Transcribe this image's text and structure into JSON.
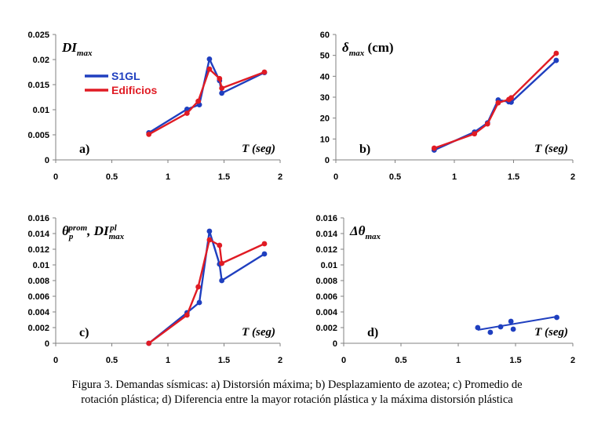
{
  "colors": {
    "s1gl": "#1f3fbf",
    "edificios": "#e01b24",
    "axis": "#808080"
  },
  "legend": {
    "s1gl": "S1GL",
    "edificios": "Edificios"
  },
  "caption": {
    "line1": "Figura 3. Demandas sísmicas: a) Distorsión máxima; b) Desplazamiento de azotea; c) Promedio de",
    "line2": "rotación plástica; d) Diferencia entre la mayor rotación plástica y la máxima distorsión plástica"
  },
  "chart_data": [
    {
      "id": "a",
      "type": "line",
      "panel_label": "a)",
      "title": "DImax",
      "title_parts": {
        "main": "DI",
        "sub": "max"
      },
      "xlabel": "T (seg)",
      "xlim": [
        0,
        2
      ],
      "ylim": [
        0,
        0.025
      ],
      "xticks": [
        "0",
        "0.5",
        "1",
        "1.5",
        "2"
      ],
      "xtick_values": [
        0,
        0.5,
        1,
        1.5,
        2
      ],
      "yticks": [
        "0",
        "0.005",
        "0.01",
        "0.015",
        "0.02",
        "0.025"
      ],
      "ytick_values": [
        0,
        0.005,
        0.01,
        0.015,
        0.02,
        0.025
      ],
      "series": [
        {
          "name": "S1GL",
          "x": [
            0.83,
            1.17,
            1.28,
            1.37,
            1.46,
            1.48,
            1.86
          ],
          "y": [
            0.0054,
            0.0101,
            0.011,
            0.0201,
            0.0158,
            0.0133,
            0.0174
          ]
        },
        {
          "name": "Edificios",
          "x": [
            0.83,
            1.17,
            1.27,
            1.37,
            1.46,
            1.48,
            1.86
          ],
          "y": [
            0.0051,
            0.0093,
            0.0117,
            0.0181,
            0.0162,
            0.0143,
            0.0175
          ]
        }
      ]
    },
    {
      "id": "b",
      "type": "line",
      "panel_label": "b)",
      "title": "δmax (cm)",
      "title_parts": {
        "main": "δ",
        "sub": "max",
        "unit": " (cm)"
      },
      "xlabel": "T (seg)",
      "xlim": [
        0,
        2
      ],
      "ylim": [
        0,
        60
      ],
      "xticks": [
        "0",
        "0.5",
        "1",
        "1.5",
        "2"
      ],
      "xtick_values": [
        0,
        0.5,
        1,
        1.5,
        2
      ],
      "yticks": [
        "0",
        "10",
        "20",
        "30",
        "40",
        "50",
        "60"
      ],
      "ytick_values": [
        0,
        10,
        20,
        30,
        40,
        50,
        60
      ],
      "series": [
        {
          "name": "S1GL",
          "x": [
            0.83,
            1.17,
            1.28,
            1.37,
            1.46,
            1.48,
            1.86
          ],
          "y": [
            4.7,
            13.3,
            17.7,
            28.7,
            27.8,
            27.6,
            47.6
          ]
        },
        {
          "name": "Edificios",
          "x": [
            0.83,
            1.17,
            1.28,
            1.37,
            1.46,
            1.48,
            1.86
          ],
          "y": [
            5.6,
            12.5,
            17.2,
            27.3,
            28.9,
            29.7,
            51.0
          ]
        }
      ]
    },
    {
      "id": "c",
      "type": "line",
      "panel_label": "c)",
      "title": "θp prom, DImax pl",
      "title_parts": {
        "main1": "θ",
        "sub1": "p",
        "sup1": "prom",
        "sep": ", ",
        "main2": "DI",
        "sub2": "max",
        "sup2": "pl"
      },
      "xlabel": "T (seg)",
      "xlim": [
        0,
        2
      ],
      "ylim": [
        0,
        0.016
      ],
      "xticks": [
        "0",
        "0.5",
        "1",
        "1.5",
        "2"
      ],
      "xtick_values": [
        0,
        0.5,
        1,
        1.5,
        2
      ],
      "yticks": [
        "0",
        "0.002",
        "0.004",
        "0.006",
        "0.008",
        "0.01",
        "0.012",
        "0.014",
        "0.016"
      ],
      "ytick_values": [
        0,
        0.002,
        0.004,
        0.006,
        0.008,
        0.01,
        0.012,
        0.014,
        0.016
      ],
      "series": [
        {
          "name": "S1GL",
          "x": [
            0.83,
            1.17,
            1.28,
            1.37,
            1.46,
            1.48,
            1.86
          ],
          "y": [
            0.0,
            0.0039,
            0.0052,
            0.0143,
            0.0101,
            0.008,
            0.0114
          ]
        },
        {
          "name": "Edificios",
          "x": [
            0.83,
            1.17,
            1.27,
            1.37,
            1.46,
            1.48,
            1.86
          ],
          "y": [
            0.0,
            0.0036,
            0.0072,
            0.0132,
            0.0125,
            0.0102,
            0.0127
          ]
        }
      ]
    },
    {
      "id": "d",
      "type": "scatter",
      "panel_label": "d)",
      "title": "Δθmax",
      "title_parts": {
        "main": "Δθ",
        "sub": "max"
      },
      "xlabel": "T (seg)",
      "xlim": [
        0,
        2
      ],
      "ylim": [
        0,
        0.016
      ],
      "xticks": [
        "0",
        "0.5",
        "1",
        "1.5",
        "2"
      ],
      "xtick_values": [
        0,
        0.5,
        1,
        1.5,
        2
      ],
      "yticks": [
        "0",
        "0.002",
        "0.004",
        "0.006",
        "0.008",
        "0.01",
        "0.012",
        "0.014",
        "0.016"
      ],
      "ytick_values": [
        0,
        0.002,
        0.004,
        0.006,
        0.008,
        0.01,
        0.012,
        0.014,
        0.016
      ],
      "series": [
        {
          "name": "S1GL",
          "x": [
            1.17,
            1.28,
            1.37,
            1.46,
            1.48,
            1.86
          ],
          "y": [
            0.002,
            0.0014,
            0.0021,
            0.0028,
            0.0018,
            0.0033
          ]
        }
      ],
      "trendline": {
        "x": [
          1.17,
          1.86
        ],
        "y": [
          0.0017,
          0.0034
        ]
      }
    }
  ]
}
